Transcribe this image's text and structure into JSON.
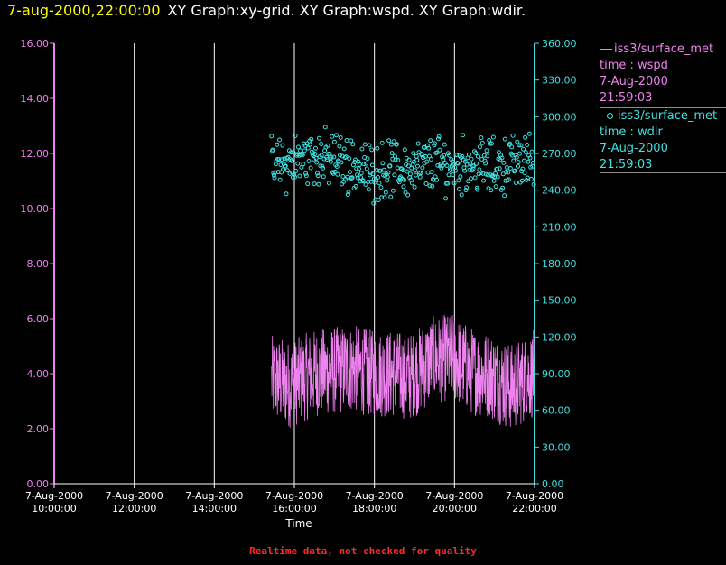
{
  "header": {
    "datetime": "7-aug-2000,22:00:00",
    "graphs": "XY Graph:xy-grid.  XY Graph:wspd.  XY Graph:wdir."
  },
  "legend": {
    "wspd": {
      "source": "iss3/surface_met",
      "var": "time : wspd",
      "date": "7-Aug-2000",
      "time": "21:59:03"
    },
    "wdir": {
      "source": "iss3/surface_met",
      "var": "time : wdir",
      "date": "7-Aug-2000",
      "time": "21:59:03"
    }
  },
  "footer": "Realtime data, not checked for quality",
  "colors": {
    "wspd": "#ee82ee",
    "wdir": "#40e0e0",
    "grid": "#ffffff",
    "header_date": "#ffff00",
    "footer": "#ff2a2a"
  },
  "chart_data": {
    "type": "line+scatter",
    "xlabel": "Time",
    "x_ticks": [
      {
        "date": "7-Aug-2000",
        "time": "10:00:00",
        "hours": 10
      },
      {
        "date": "7-Aug-2000",
        "time": "12:00:00",
        "hours": 12
      },
      {
        "date": "7-Aug-2000",
        "time": "14:00:00",
        "hours": 14
      },
      {
        "date": "7-Aug-2000",
        "time": "16:00:00",
        "hours": 16
      },
      {
        "date": "7-Aug-2000",
        "time": "18:00:00",
        "hours": 18
      },
      {
        "date": "7-Aug-2000",
        "time": "20:00:00",
        "hours": 20
      },
      {
        "date": "7-Aug-2000",
        "time": "22:00:00",
        "hours": 22
      }
    ],
    "xlim_hours": [
      10,
      22
    ],
    "grid": "vertical",
    "y_left": {
      "range": [
        0,
        16
      ],
      "ticks": [
        "0.00",
        "2.00",
        "4.00",
        "6.00",
        "8.00",
        "10.00",
        "12.00",
        "14.00",
        "16.00"
      ]
    },
    "y_right": {
      "range": [
        0,
        360
      ],
      "ticks": [
        "0.00",
        "30.00",
        "60.00",
        "90.00",
        "120.00",
        "150.00",
        "180.00",
        "210.00",
        "240.00",
        "270.00",
        "300.00",
        "330.00",
        "360.00"
      ]
    },
    "series": [
      {
        "name": "iss3/surface_met time : wspd",
        "axis": "left",
        "style": "line",
        "time_hours": [
          15.43,
          15.93,
          16.43,
          16.93,
          17.43,
          17.93,
          18.43,
          18.93,
          19.43,
          19.93,
          20.43,
          20.93,
          21.43,
          21.98
        ],
        "values": [
          3.8,
          3.6,
          4.0,
          4.1,
          4.2,
          4.0,
          4.0,
          3.9,
          4.5,
          4.6,
          4.1,
          3.9,
          3.5,
          4.0
        ]
      },
      {
        "name": "iss3/surface_met time : wdir",
        "axis": "right",
        "style": "markers",
        "time_hours": [
          15.43,
          15.93,
          16.43,
          16.93,
          17.43,
          17.93,
          18.43,
          18.93,
          19.43,
          19.93,
          20.43,
          20.93,
          21.43,
          21.98
        ],
        "values": [
          258,
          262,
          268,
          265,
          260,
          254,
          258,
          256,
          262,
          260,
          262,
          258,
          262,
          266
        ]
      }
    ]
  }
}
